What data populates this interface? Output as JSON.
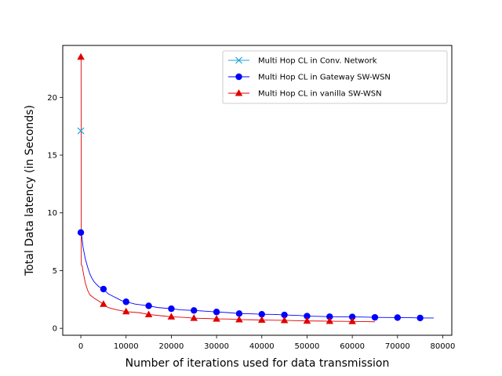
{
  "chart_data": {
    "type": "line",
    "title": "",
    "xlabel": "Number of iterations used for data transmission",
    "ylabel": "Total Data latency (in Seconds)",
    "xlim": [
      -4000,
      82000
    ],
    "ylim": [
      -0.6,
      24.5
    ],
    "xticks": [
      0,
      10000,
      20000,
      30000,
      40000,
      50000,
      60000,
      70000,
      80000
    ],
    "yticks": [
      0,
      5,
      10,
      15,
      20
    ],
    "grid": false,
    "legend_position": "top-right",
    "series": [
      {
        "name": "Multi Hop CL in Conv. Network",
        "color": "#1fa2dc",
        "marker": "x",
        "x": [
          0
        ],
        "y": [
          17.1
        ],
        "markers": [
          [
            0,
            17.1
          ]
        ]
      },
      {
        "name": "Multi Hop CL in Gateway SW-WSN",
        "color": "#0000ff",
        "marker": "circle",
        "x": [
          0,
          200,
          500,
          1000,
          1500,
          2000,
          2500,
          3000,
          3500,
          4000,
          5000,
          6000,
          7000,
          8000,
          9000,
          10000,
          12000,
          15000,
          17000,
          20000,
          22000,
          25000,
          27000,
          30000,
          33000,
          35000,
          38000,
          40000,
          43000,
          45000,
          48000,
          50000,
          53000,
          55000,
          58000,
          60000,
          63000,
          65000,
          68000,
          70000,
          73000,
          75000,
          78000
        ],
        "y": [
          8.3,
          8.0,
          7.0,
          6.0,
          5.3,
          4.7,
          4.3,
          4.0,
          3.8,
          3.6,
          3.4,
          3.0,
          2.8,
          2.6,
          2.4,
          2.3,
          2.1,
          1.95,
          1.8,
          1.7,
          1.6,
          1.55,
          1.5,
          1.42,
          1.35,
          1.28,
          1.25,
          1.22,
          1.2,
          1.16,
          1.12,
          1.06,
          1.03,
          1.01,
          1.0,
          0.99,
          0.97,
          0.95,
          0.94,
          0.93,
          0.92,
          0.9,
          0.9
        ],
        "markers": [
          [
            0,
            8.3
          ],
          [
            5000,
            3.4
          ],
          [
            10000,
            2.3
          ],
          [
            15000,
            1.95
          ],
          [
            20000,
            1.7
          ],
          [
            25000,
            1.55
          ],
          [
            30000,
            1.42
          ],
          [
            35000,
            1.28
          ],
          [
            40000,
            1.22
          ],
          [
            45000,
            1.16
          ],
          [
            50000,
            1.06
          ],
          [
            55000,
            1.01
          ],
          [
            60000,
            0.99
          ],
          [
            65000,
            0.95
          ],
          [
            70000,
            0.93
          ],
          [
            75000,
            0.9
          ]
        ]
      },
      {
        "name": "Multi Hop CL in vanilla SW-WSN",
        "color": "#e00000",
        "marker": "triangle",
        "x": [
          0,
          50,
          100,
          300,
          500,
          1000,
          1500,
          2000,
          3000,
          4000,
          5000,
          6000,
          8000,
          10000,
          13000,
          15000,
          18000,
          20000,
          23000,
          25000,
          28000,
          30000,
          33000,
          35000,
          38000,
          40000,
          43000,
          45000,
          48000,
          50000,
          53000,
          55000,
          58000,
          60000,
          63000,
          65000
        ],
        "y": [
          23.5,
          23.5,
          5.5,
          5.4,
          4.9,
          3.9,
          3.3,
          2.9,
          2.6,
          2.35,
          2.1,
          1.8,
          1.6,
          1.45,
          1.35,
          1.2,
          1.08,
          1.0,
          0.95,
          0.88,
          0.85,
          0.82,
          0.8,
          0.76,
          0.74,
          0.72,
          0.7,
          0.69,
          0.66,
          0.64,
          0.63,
          0.62,
          0.61,
          0.6,
          0.58,
          0.57
        ],
        "markers": [
          [
            0,
            23.5
          ],
          [
            5000,
            2.1
          ],
          [
            10000,
            1.45
          ],
          [
            15000,
            1.2
          ],
          [
            20000,
            1.0
          ],
          [
            25000,
            0.88
          ],
          [
            30000,
            0.82
          ],
          [
            35000,
            0.76
          ],
          [
            40000,
            0.72
          ],
          [
            45000,
            0.69
          ],
          [
            50000,
            0.64
          ],
          [
            55000,
            0.62
          ],
          [
            60000,
            0.6
          ]
        ]
      }
    ]
  }
}
